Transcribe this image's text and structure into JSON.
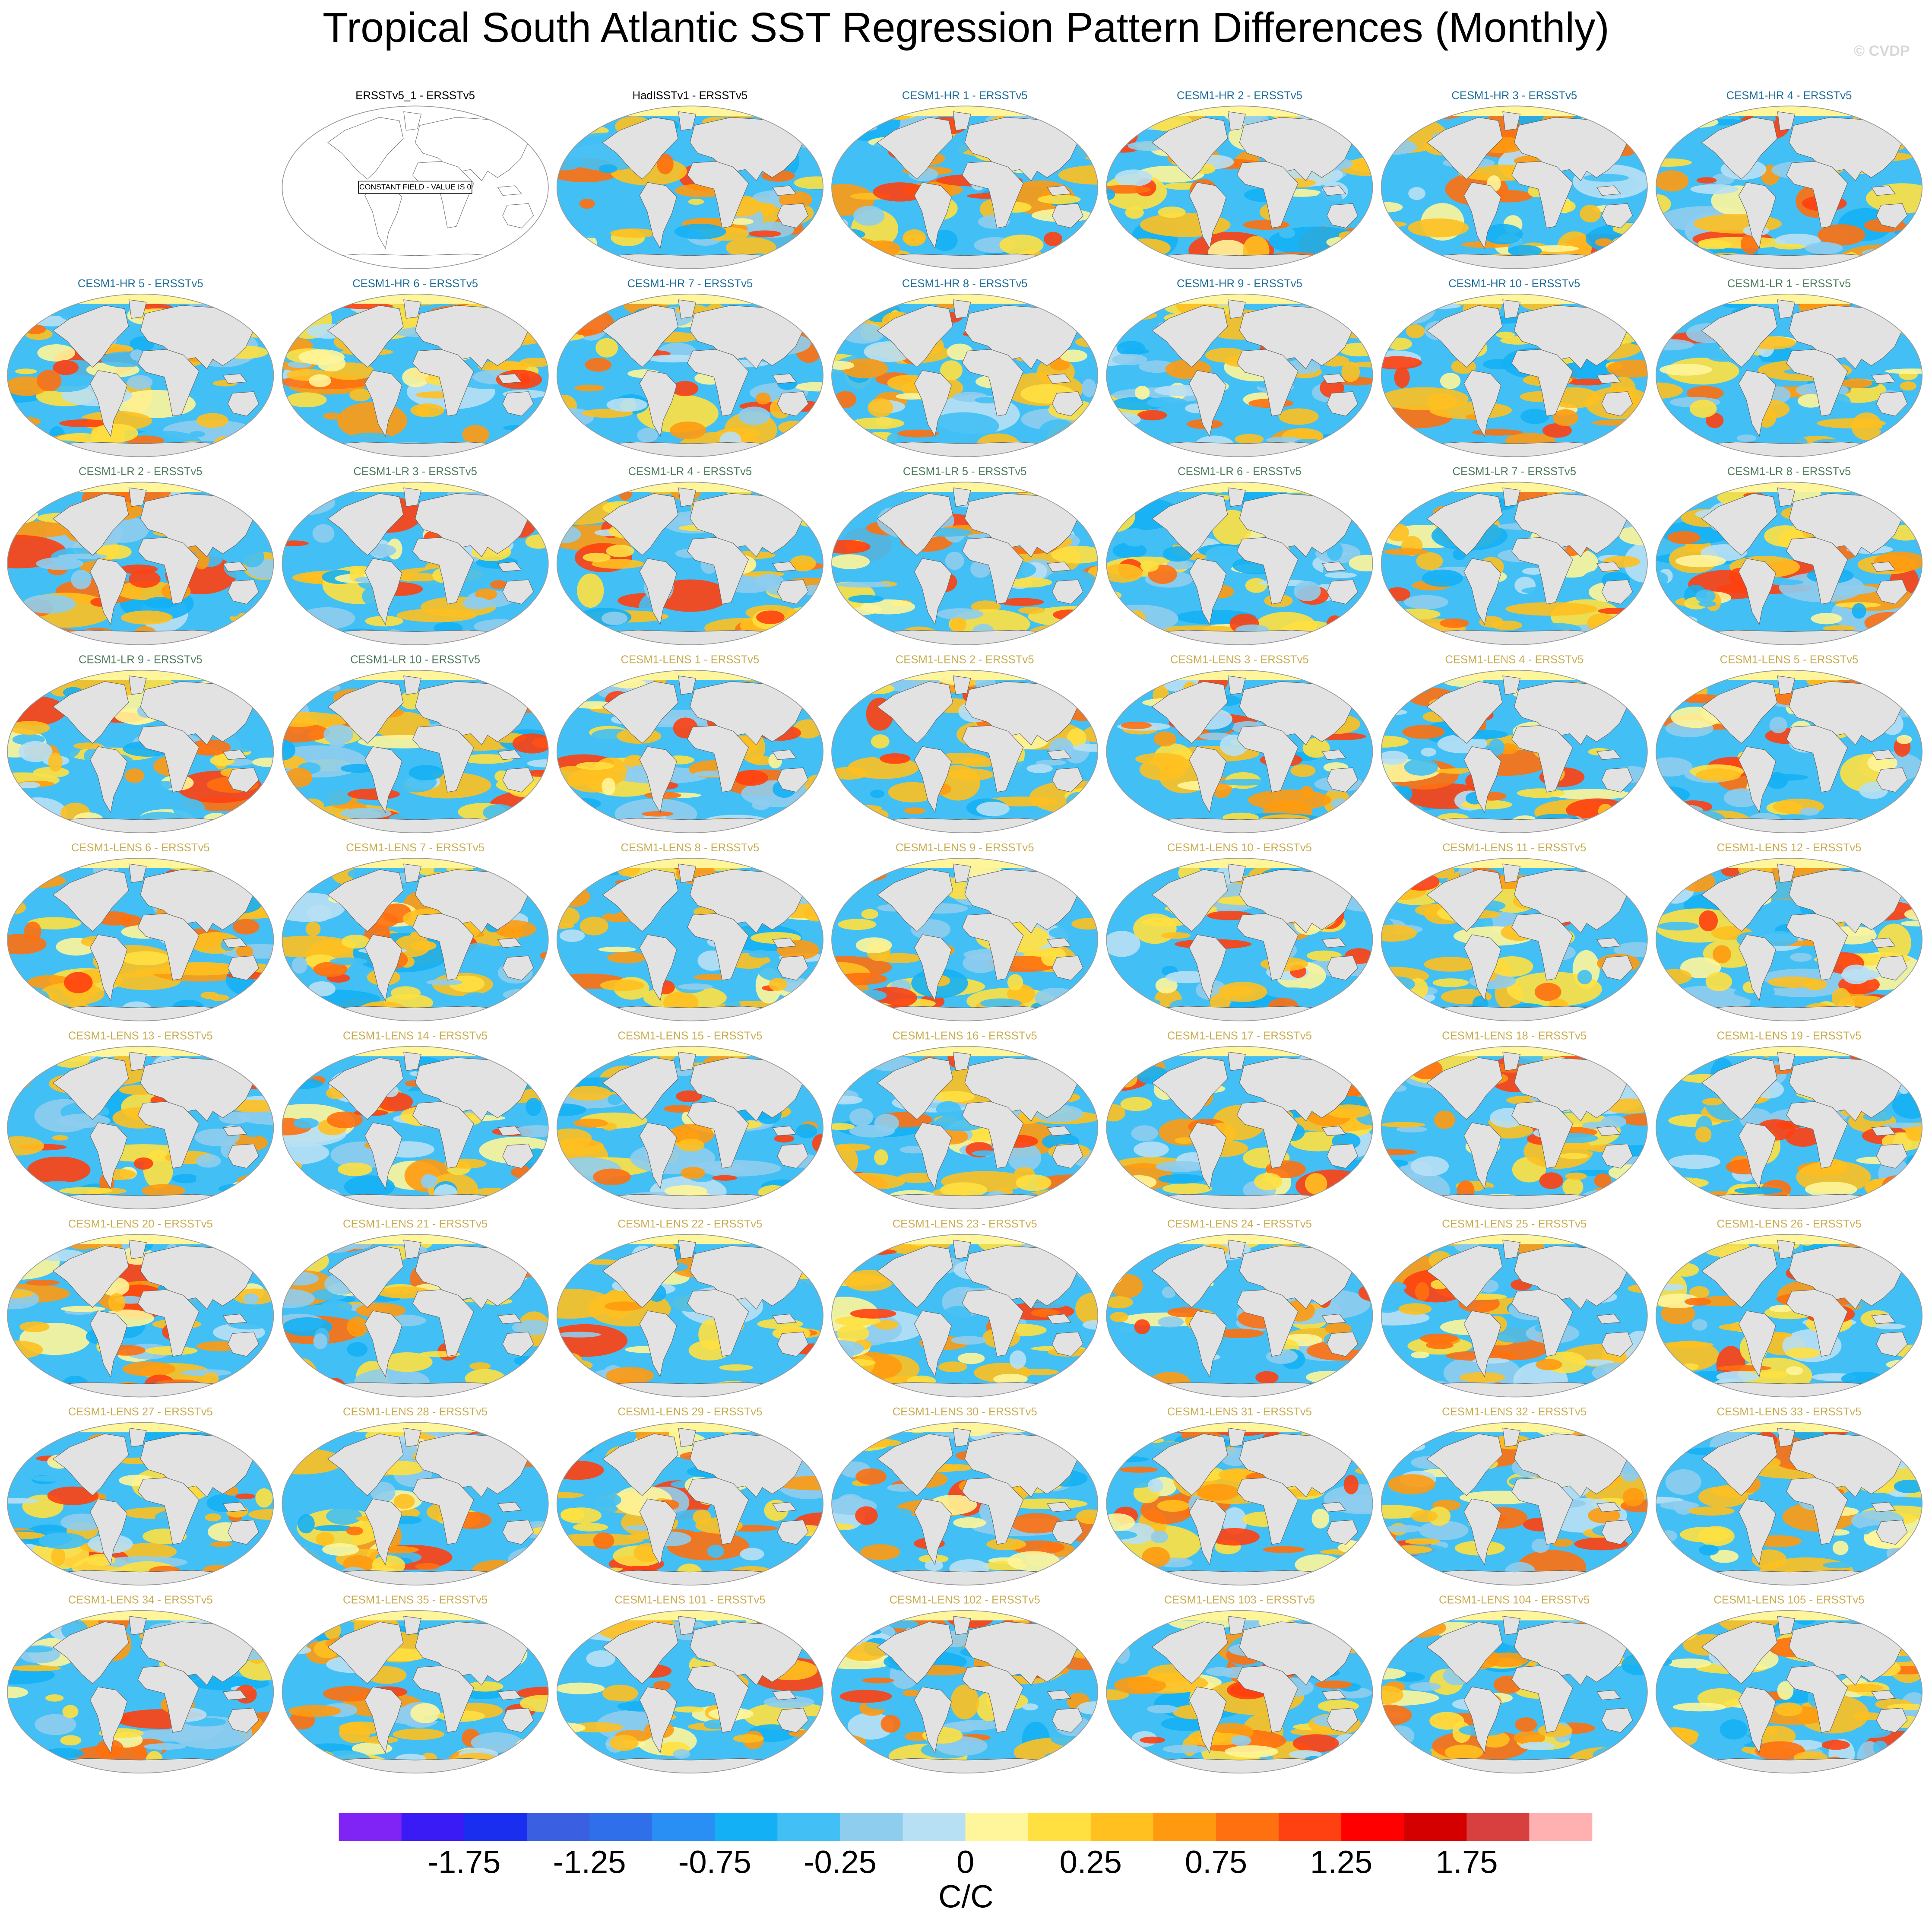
{
  "title": "Tropical South Atlantic SST Regression Pattern Differences (Monthly)",
  "watermark": "© CVDP",
  "groups": [
    {
      "color": "#000000",
      "panels": [
        {
          "title": "ERSSTv5_1 - ERSSTv5",
          "note": "CONSTANT FIELD - VALUE IS 0"
        },
        {
          "title": "HadISSTv1 - ERSSTv5"
        }
      ]
    },
    {
      "color": "#1f6e99",
      "panels": [
        {
          "title": "CESM1-HR 1 - ERSSTv5"
        },
        {
          "title": "CESM1-HR 2 - ERSSTv5"
        },
        {
          "title": "CESM1-HR 3 - ERSSTv5"
        },
        {
          "title": "CESM1-HR 4 - ERSSTv5"
        },
        {
          "title": "CESM1-HR 5 - ERSSTv5"
        },
        {
          "title": "CESM1-HR 6 - ERSSTv5"
        },
        {
          "title": "CESM1-HR 7 - ERSSTv5"
        },
        {
          "title": "CESM1-HR 8 - ERSSTv5"
        },
        {
          "title": "CESM1-HR 9 - ERSSTv5"
        },
        {
          "title": "CESM1-HR 10 - ERSSTv5"
        }
      ]
    },
    {
      "color": "#4f7d5f",
      "panels": [
        {
          "title": "CESM1-LR 1 - ERSSTv5"
        },
        {
          "title": "CESM1-LR 2 - ERSSTv5"
        },
        {
          "title": "CESM1-LR 3 - ERSSTv5"
        },
        {
          "title": "CESM1-LR 4 - ERSSTv5"
        },
        {
          "title": "CESM1-LR 5 - ERSSTv5"
        },
        {
          "title": "CESM1-LR 6 - ERSSTv5"
        },
        {
          "title": "CESM1-LR 7 - ERSSTv5"
        },
        {
          "title": "CESM1-LR 8 - ERSSTv5"
        },
        {
          "title": "CESM1-LR 9 - ERSSTv5"
        },
        {
          "title": "CESM1-LR 10 - ERSSTv5"
        }
      ]
    },
    {
      "color": "#c9ad52",
      "panels": [
        {
          "title": "CESM1-LENS 1 - ERSSTv5"
        },
        {
          "title": "CESM1-LENS 2 - ERSSTv5"
        },
        {
          "title": "CESM1-LENS 3 - ERSSTv5"
        },
        {
          "title": "CESM1-LENS 4 - ERSSTv5"
        },
        {
          "title": "CESM1-LENS 5 - ERSSTv5"
        },
        {
          "title": "CESM1-LENS 6 - ERSSTv5"
        },
        {
          "title": "CESM1-LENS 7 - ERSSTv5"
        },
        {
          "title": "CESM1-LENS 8 - ERSSTv5"
        },
        {
          "title": "CESM1-LENS 9 - ERSSTv5"
        },
        {
          "title": "CESM1-LENS 10 - ERSSTv5"
        },
        {
          "title": "CESM1-LENS 11 - ERSSTv5"
        },
        {
          "title": "CESM1-LENS 12 - ERSSTv5"
        },
        {
          "title": "CESM1-LENS 13 - ERSSTv5"
        },
        {
          "title": "CESM1-LENS 14 - ERSSTv5"
        },
        {
          "title": "CESM1-LENS 15 - ERSSTv5"
        },
        {
          "title": "CESM1-LENS 16 - ERSSTv5"
        },
        {
          "title": "CESM1-LENS 17 - ERSSTv5"
        },
        {
          "title": "CESM1-LENS 18 - ERSSTv5"
        },
        {
          "title": "CESM1-LENS 19 - ERSSTv5"
        },
        {
          "title": "CESM1-LENS 20 - ERSSTv5"
        },
        {
          "title": "CESM1-LENS 21 - ERSSTv5"
        },
        {
          "title": "CESM1-LENS 22 - ERSSTv5"
        },
        {
          "title": "CESM1-LENS 23 - ERSSTv5"
        },
        {
          "title": "CESM1-LENS 24 - ERSSTv5"
        },
        {
          "title": "CESM1-LENS 25 - ERSSTv5"
        },
        {
          "title": "CESM1-LENS 26 - ERSSTv5"
        },
        {
          "title": "CESM1-LENS 27 - ERSSTv5"
        },
        {
          "title": "CESM1-LENS 28 - ERSSTv5"
        },
        {
          "title": "CESM1-LENS 29 - ERSSTv5"
        },
        {
          "title": "CESM1-LENS 30 - ERSSTv5"
        },
        {
          "title": "CESM1-LENS 31 - ERSSTv5"
        },
        {
          "title": "CESM1-LENS 32 - ERSSTv5"
        },
        {
          "title": "CESM1-LENS 33 - ERSSTv5"
        },
        {
          "title": "CESM1-LENS 34 - ERSSTv5"
        },
        {
          "title": "CESM1-LENS 35 - ERSSTv5"
        },
        {
          "title": "CESM1-LENS 101 - ERSSTv5"
        },
        {
          "title": "CESM1-LENS 102 - ERSSTv5"
        },
        {
          "title": "CESM1-LENS 103 - ERSSTv5"
        },
        {
          "title": "CESM1-LENS 104 - ERSSTv5"
        },
        {
          "title": "CESM1-LENS 105 - ERSSTv5"
        }
      ]
    }
  ],
  "colorbar": {
    "colors": [
      "#8023f5",
      "#3a1af5",
      "#1a2ef0",
      "#3a5fe0",
      "#2f6fea",
      "#2a8ff5",
      "#14b0f5",
      "#42c0f5",
      "#8fcdee",
      "#b8e0f5",
      "#fff59a",
      "#ffe040",
      "#ffc020",
      "#ff9a10",
      "#ff7010",
      "#ff4010",
      "#ff0000",
      "#d40000",
      "#d84040",
      "#ffb0b0"
    ],
    "ticks": [
      -1.75,
      -1.25,
      -0.75,
      -0.25,
      0,
      0.25,
      0.75,
      1.25,
      1.75
    ],
    "units": "C/C"
  }
}
